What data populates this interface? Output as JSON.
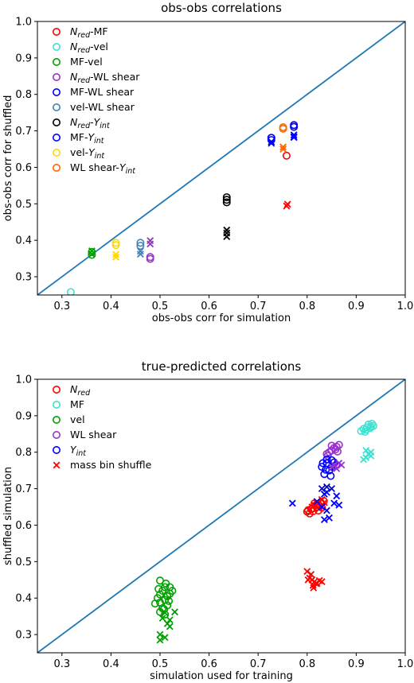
{
  "chart_data": [
    {
      "type": "scatter",
      "title": "obs-obs correlations",
      "xlabel": "obs-obs corr for simulation",
      "ylabel": "obs-obs corr for shuffled",
      "xlim": [
        0.25,
        1.0
      ],
      "ylim": [
        0.25,
        1.0
      ],
      "xticks": [
        "0.3",
        "0.4",
        "0.5",
        "0.6",
        "0.7",
        "0.8",
        "0.9",
        "1.0"
      ],
      "yticks": [
        "0.3",
        "0.4",
        "0.5",
        "0.6",
        "0.7",
        "0.8",
        "0.9",
        "1.0"
      ],
      "diagonal": true,
      "diagonal_color": "#1f77b4",
      "legend_placement": "upper-left",
      "marker_note": "circle and x marker sets per pair",
      "series": [
        {
          "name": "N_red-MF",
          "label": "-MF",
          "base": "N",
          "sub": "red",
          "prefix": "",
          "suffix": "-MF",
          "color": "#ff0000",
          "circles": [
            [
              0.758,
              0.632
            ]
          ],
          "crosses": [
            [
              0.758,
              0.494
            ],
            [
              0.76,
              0.499
            ]
          ]
        },
        {
          "name": "N_red-vel",
          "label": "-vel",
          "base": "N",
          "sub": "red",
          "prefix": "",
          "suffix": "-vel",
          "color": "#40e0d0",
          "circles": [
            [
              0.318,
              0.258
            ]
          ],
          "crosses": []
        },
        {
          "name": "MF-vel",
          "label": "MF-vel",
          "base": "",
          "sub": "",
          "prefix": "MF-vel",
          "suffix": "",
          "color": "#00a000",
          "circles": [
            [
              0.361,
              0.36
            ],
            [
              0.361,
              0.368
            ]
          ],
          "crosses": [
            [
              0.361,
              0.362
            ],
            [
              0.361,
              0.371
            ]
          ]
        },
        {
          "name": "N_red-WL shear",
          "label": "-WL shear",
          "base": "N",
          "sub": "red",
          "prefix": "",
          "suffix": "-WL shear",
          "color": "#9932cc",
          "circles": [
            [
              0.48,
              0.349
            ],
            [
              0.48,
              0.354
            ]
          ],
          "crosses": [
            [
              0.48,
              0.39
            ],
            [
              0.48,
              0.399
            ]
          ]
        },
        {
          "name": "MF-WL shear",
          "label": "MF-WL shear",
          "base": "",
          "sub": "",
          "prefix": "MF-WL shear",
          "suffix": "",
          "color": "#0000ff",
          "circles": [
            [
              0.727,
              0.675
            ],
            [
              0.727,
              0.681
            ],
            [
              0.773,
              0.711
            ],
            [
              0.773,
              0.716
            ]
          ],
          "crosses": [
            [
              0.727,
              0.666
            ],
            [
              0.773,
              0.682
            ],
            [
              0.773,
              0.689
            ]
          ]
        },
        {
          "name": "vel-WL shear",
          "label": "vel-WL shear",
          "base": "",
          "sub": "",
          "prefix": "vel-WL shear",
          "suffix": "",
          "color": "#4682b4",
          "circles": [
            [
              0.46,
              0.385
            ],
            [
              0.46,
              0.393
            ]
          ],
          "crosses": [
            [
              0.46,
              0.362
            ],
            [
              0.46,
              0.37
            ]
          ]
        },
        {
          "name": "N_red-Y_int",
          "label": "-",
          "base": "N",
          "sub": "red",
          "prefix": "",
          "suffix": "-",
          "base2": "Y",
          "sub2": "int",
          "color": "#000000",
          "circles": [
            [
              0.636,
              0.504
            ],
            [
              0.636,
              0.511
            ],
            [
              0.636,
              0.518
            ]
          ],
          "crosses": [
            [
              0.636,
              0.41
            ],
            [
              0.636,
              0.42
            ],
            [
              0.636,
              0.428
            ]
          ]
        },
        {
          "name": "MF-Y_int",
          "label": "MF-",
          "base": "",
          "sub": "",
          "prefix": "MF-",
          "suffix": "",
          "base2": "Y",
          "sub2": "int",
          "color": "#0000ff",
          "circles": [
            [
              0.727,
              0.681
            ],
            [
              0.773,
              0.711
            ]
          ],
          "crosses": [
            [
              0.727,
              0.67
            ],
            [
              0.773,
              0.684
            ]
          ]
        },
        {
          "name": "vel-Y_int",
          "label": "vel-",
          "base": "",
          "sub": "",
          "prefix": "vel-",
          "suffix": "",
          "base2": "Y",
          "sub2": "int",
          "color": "#ffd700",
          "circles": [
            [
              0.41,
              0.387
            ],
            [
              0.41,
              0.393
            ]
          ],
          "crosses": [
            [
              0.41,
              0.354
            ],
            [
              0.41,
              0.361
            ]
          ]
        },
        {
          "name": "WL shear-Y_int",
          "label": "WL shear-",
          "base": "",
          "sub": "",
          "prefix": "WL shear-",
          "suffix": "",
          "base2": "Y",
          "sub2": "int",
          "color": "#ff6600",
          "circles": [
            [
              0.751,
              0.706
            ],
            [
              0.751,
              0.71
            ]
          ],
          "crosses": [
            [
              0.751,
              0.65
            ],
            [
              0.751,
              0.656
            ]
          ]
        }
      ]
    },
    {
      "type": "scatter",
      "title": "true-predicted correlations",
      "xlabel": "simulation used for training",
      "ylabel": "shuffled simulation",
      "xlim": [
        0.25,
        1.0
      ],
      "ylim": [
        0.25,
        1.0
      ],
      "xticks": [
        "0.3",
        "0.4",
        "0.5",
        "0.6",
        "0.7",
        "0.8",
        "0.9",
        "1.0"
      ],
      "yticks": [
        "0.3",
        "0.4",
        "0.5",
        "0.6",
        "0.7",
        "0.8",
        "0.9",
        "1.0"
      ],
      "diagonal": true,
      "diagonal_color": "#1f77b4",
      "legend_placement": "upper-left",
      "series": [
        {
          "name": "N_red",
          "label": "",
          "base": "N",
          "sub": "red",
          "prefix": "",
          "suffix": "",
          "color": "#ff0000",
          "marker": "circle",
          "circles": [
            [
              0.8,
              0.637
            ],
            [
              0.81,
              0.645
            ],
            [
              0.82,
              0.65
            ],
            [
              0.805,
              0.632
            ],
            [
              0.815,
              0.66
            ],
            [
              0.823,
              0.64
            ],
            [
              0.83,
              0.648
            ],
            [
              0.812,
              0.638
            ],
            [
              0.828,
              0.662
            ],
            [
              0.808,
              0.644
            ],
            [
              0.818,
              0.655
            ],
            [
              0.834,
              0.666
            ],
            [
              0.802,
              0.641
            ],
            [
              0.826,
              0.652
            ]
          ]
        },
        {
          "name": "MF",
          "label": "MF",
          "base": "",
          "sub": "",
          "prefix": "MF",
          "suffix": "",
          "color": "#40e0d0",
          "marker": "circle",
          "circles": [
            [
              0.91,
              0.858
            ],
            [
              0.92,
              0.862
            ],
            [
              0.93,
              0.87
            ],
            [
              0.925,
              0.876
            ],
            [
              0.915,
              0.864
            ],
            [
              0.935,
              0.872
            ],
            [
              0.928,
              0.866
            ],
            [
              0.918,
              0.856
            ],
            [
              0.932,
              0.878
            ],
            [
              0.922,
              0.868
            ]
          ]
        },
        {
          "name": "vel",
          "label": "vel",
          "base": "",
          "sub": "",
          "prefix": "vel",
          "suffix": "",
          "color": "#00a000",
          "marker": "circle",
          "circles": [
            [
              0.5,
              0.448
            ],
            [
              0.51,
              0.43
            ],
            [
              0.505,
              0.42
            ],
            [
              0.52,
              0.412
            ],
            [
              0.495,
              0.4
            ],
            [
              0.51,
              0.395
            ],
            [
              0.5,
              0.388
            ],
            [
              0.515,
              0.38
            ],
            [
              0.505,
              0.372
            ],
            [
              0.49,
              0.385
            ],
            [
              0.52,
              0.43
            ],
            [
              0.515,
              0.405
            ],
            [
              0.5,
              0.362
            ],
            [
              0.51,
              0.355
            ],
            [
              0.525,
              0.42
            ],
            [
              0.5,
              0.41
            ],
            [
              0.512,
              0.44
            ],
            [
              0.497,
              0.425
            ],
            [
              0.508,
              0.37
            ],
            [
              0.518,
              0.392
            ]
          ]
        },
        {
          "name": "WL shear",
          "label": "WL shear",
          "base": "",
          "sub": "",
          "prefix": "WL shear",
          "suffix": "",
          "color": "#9932cc",
          "marker": "circle",
          "circles": [
            [
              0.84,
              0.795
            ],
            [
              0.85,
              0.805
            ],
            [
              0.855,
              0.812
            ],
            [
              0.86,
              0.815
            ],
            [
              0.845,
              0.8
            ],
            [
              0.865,
              0.82
            ],
            [
              0.85,
              0.818
            ],
            [
              0.858,
              0.808
            ],
            [
              0.842,
              0.79
            ],
            [
              0.862,
              0.802
            ]
          ]
        },
        {
          "name": "Y_int",
          "label": "",
          "base": "Y",
          "sub": "int",
          "prefix": "",
          "suffix": "",
          "color": "#0000ff",
          "marker": "circle",
          "circles": [
            [
              0.83,
              0.76
            ],
            [
              0.84,
              0.77
            ],
            [
              0.85,
              0.778
            ],
            [
              0.845,
              0.75
            ],
            [
              0.835,
              0.74
            ],
            [
              0.855,
              0.772
            ],
            [
              0.84,
              0.78
            ],
            [
              0.85,
              0.76
            ],
            [
              0.86,
              0.765
            ],
            [
              0.838,
              0.752
            ],
            [
              0.848,
              0.735
            ],
            [
              0.832,
              0.77
            ]
          ]
        },
        {
          "name": "mass bin shuffle",
          "label": "mass bin shuffle",
          "base": "",
          "sub": "",
          "prefix": "mass bin shuffle",
          "suffix": "",
          "color": "#ff0000",
          "marker": "cross",
          "groups": [
            {
              "color": "#ff0000",
              "points": [
                [
                  0.8,
                  0.473
                ],
                [
                  0.81,
                  0.45
                ],
                [
                  0.815,
                  0.445
                ],
                [
                  0.82,
                  0.44
                ],
                [
                  0.83,
                  0.445
                ],
                [
                  0.805,
                  0.455
                ],
                [
                  0.812,
                  0.435
                ],
                [
                  0.825,
                  0.448
                ],
                [
                  0.808,
                  0.465
                ],
                [
                  0.818,
                  0.44
                ],
                [
                  0.802,
                  0.45
                ],
                [
                  0.813,
                  0.428
                ]
              ]
            },
            {
              "color": "#ff0000",
              "points": [
                [
                  0.81,
                  0.65
                ],
                [
                  0.82,
                  0.66
                ],
                [
                  0.83,
                  0.67
                ],
                [
                  0.815,
                  0.655
                ],
                [
                  0.825,
                  0.645
                ],
                [
                  0.835,
                  0.662
                ]
              ]
            },
            {
              "color": "#40e0d0",
              "points": [
                [
                  0.92,
                  0.785
                ],
                [
                  0.925,
                  0.795
                ],
                [
                  0.93,
                  0.8
                ],
                [
                  0.92,
                  0.805
                ],
                [
                  0.93,
                  0.79
                ],
                [
                  0.915,
                  0.78
                ]
              ]
            },
            {
              "color": "#00a000",
              "points": [
                [
                  0.51,
                  0.36
                ],
                [
                  0.52,
                  0.34
                ],
                [
                  0.515,
                  0.33
                ],
                [
                  0.505,
                  0.345
                ],
                [
                  0.5,
                  0.3
                ],
                [
                  0.51,
                  0.292
                ],
                [
                  0.53,
                  0.362
                ],
                [
                  0.52,
                  0.322
                ],
                [
                  0.5,
                  0.285
                ]
              ]
            },
            {
              "color": "#9932cc",
              "points": [
                [
                  0.855,
                  0.765
                ],
                [
                  0.86,
                  0.755
                ],
                [
                  0.865,
                  0.77
                ],
                [
                  0.85,
                  0.76
                ],
                [
                  0.87,
                  0.765
                ]
              ]
            },
            {
              "color": "#0000ff",
              "points": [
                [
                  0.77,
                  0.66
                ],
                [
                  0.82,
                  0.665
                ],
                [
                  0.83,
                  0.7
                ],
                [
                  0.84,
                  0.69
                ],
                [
                  0.835,
                  0.685
                ],
                [
                  0.83,
                  0.65
                ],
                [
                  0.84,
                  0.64
                ],
                [
                  0.845,
                  0.62
                ],
                [
                  0.835,
                  0.615
                ],
                [
                  0.85,
                  0.7
                ],
                [
                  0.86,
                  0.68
                ],
                [
                  0.855,
                  0.66
                ],
                [
                  0.865,
                  0.655
                ],
                [
                  0.84,
                  0.705
                ]
              ]
            }
          ]
        }
      ]
    }
  ]
}
